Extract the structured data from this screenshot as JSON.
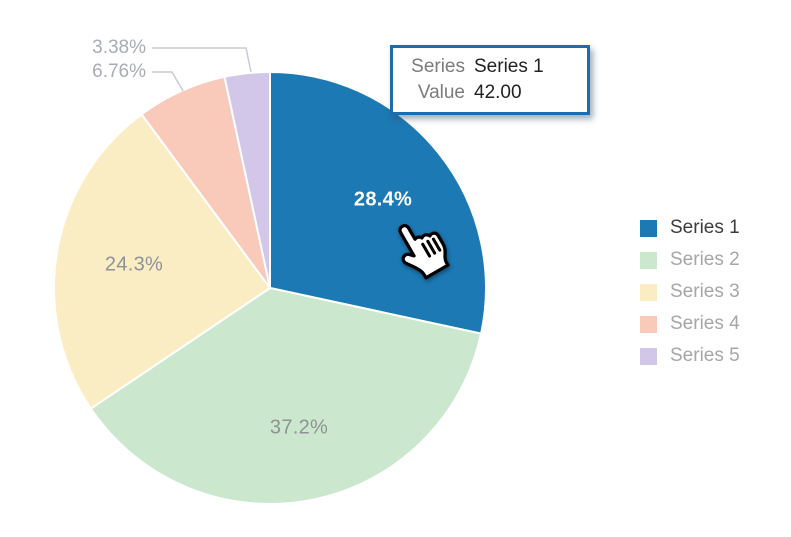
{
  "chart_data": {
    "type": "pie",
    "legend_position": "right",
    "grid": false,
    "series": [
      {
        "name": "Series 1",
        "percent": 28.4,
        "label": "28.4%",
        "color": "#1C79B4",
        "value": 42.0,
        "state": "hovered"
      },
      {
        "name": "Series 2",
        "percent": 37.2,
        "label": "37.2%",
        "color": "#CBE7CD"
      },
      {
        "name": "Series 3",
        "percent": 24.3,
        "label": "24.3%",
        "color": "#FAEDC4"
      },
      {
        "name": "Series 4",
        "percent": 6.76,
        "label": "6.76%",
        "color": "#F9C9BA"
      },
      {
        "name": "Series 5",
        "percent": 3.38,
        "label": "3.38%",
        "color": "#D3C7E9"
      }
    ],
    "tooltip": {
      "border_color": "#1A6EAE",
      "rows": [
        {
          "label": "Series",
          "value": "Series 1"
        },
        {
          "label": "Value",
          "value": "42.00"
        }
      ]
    }
  }
}
